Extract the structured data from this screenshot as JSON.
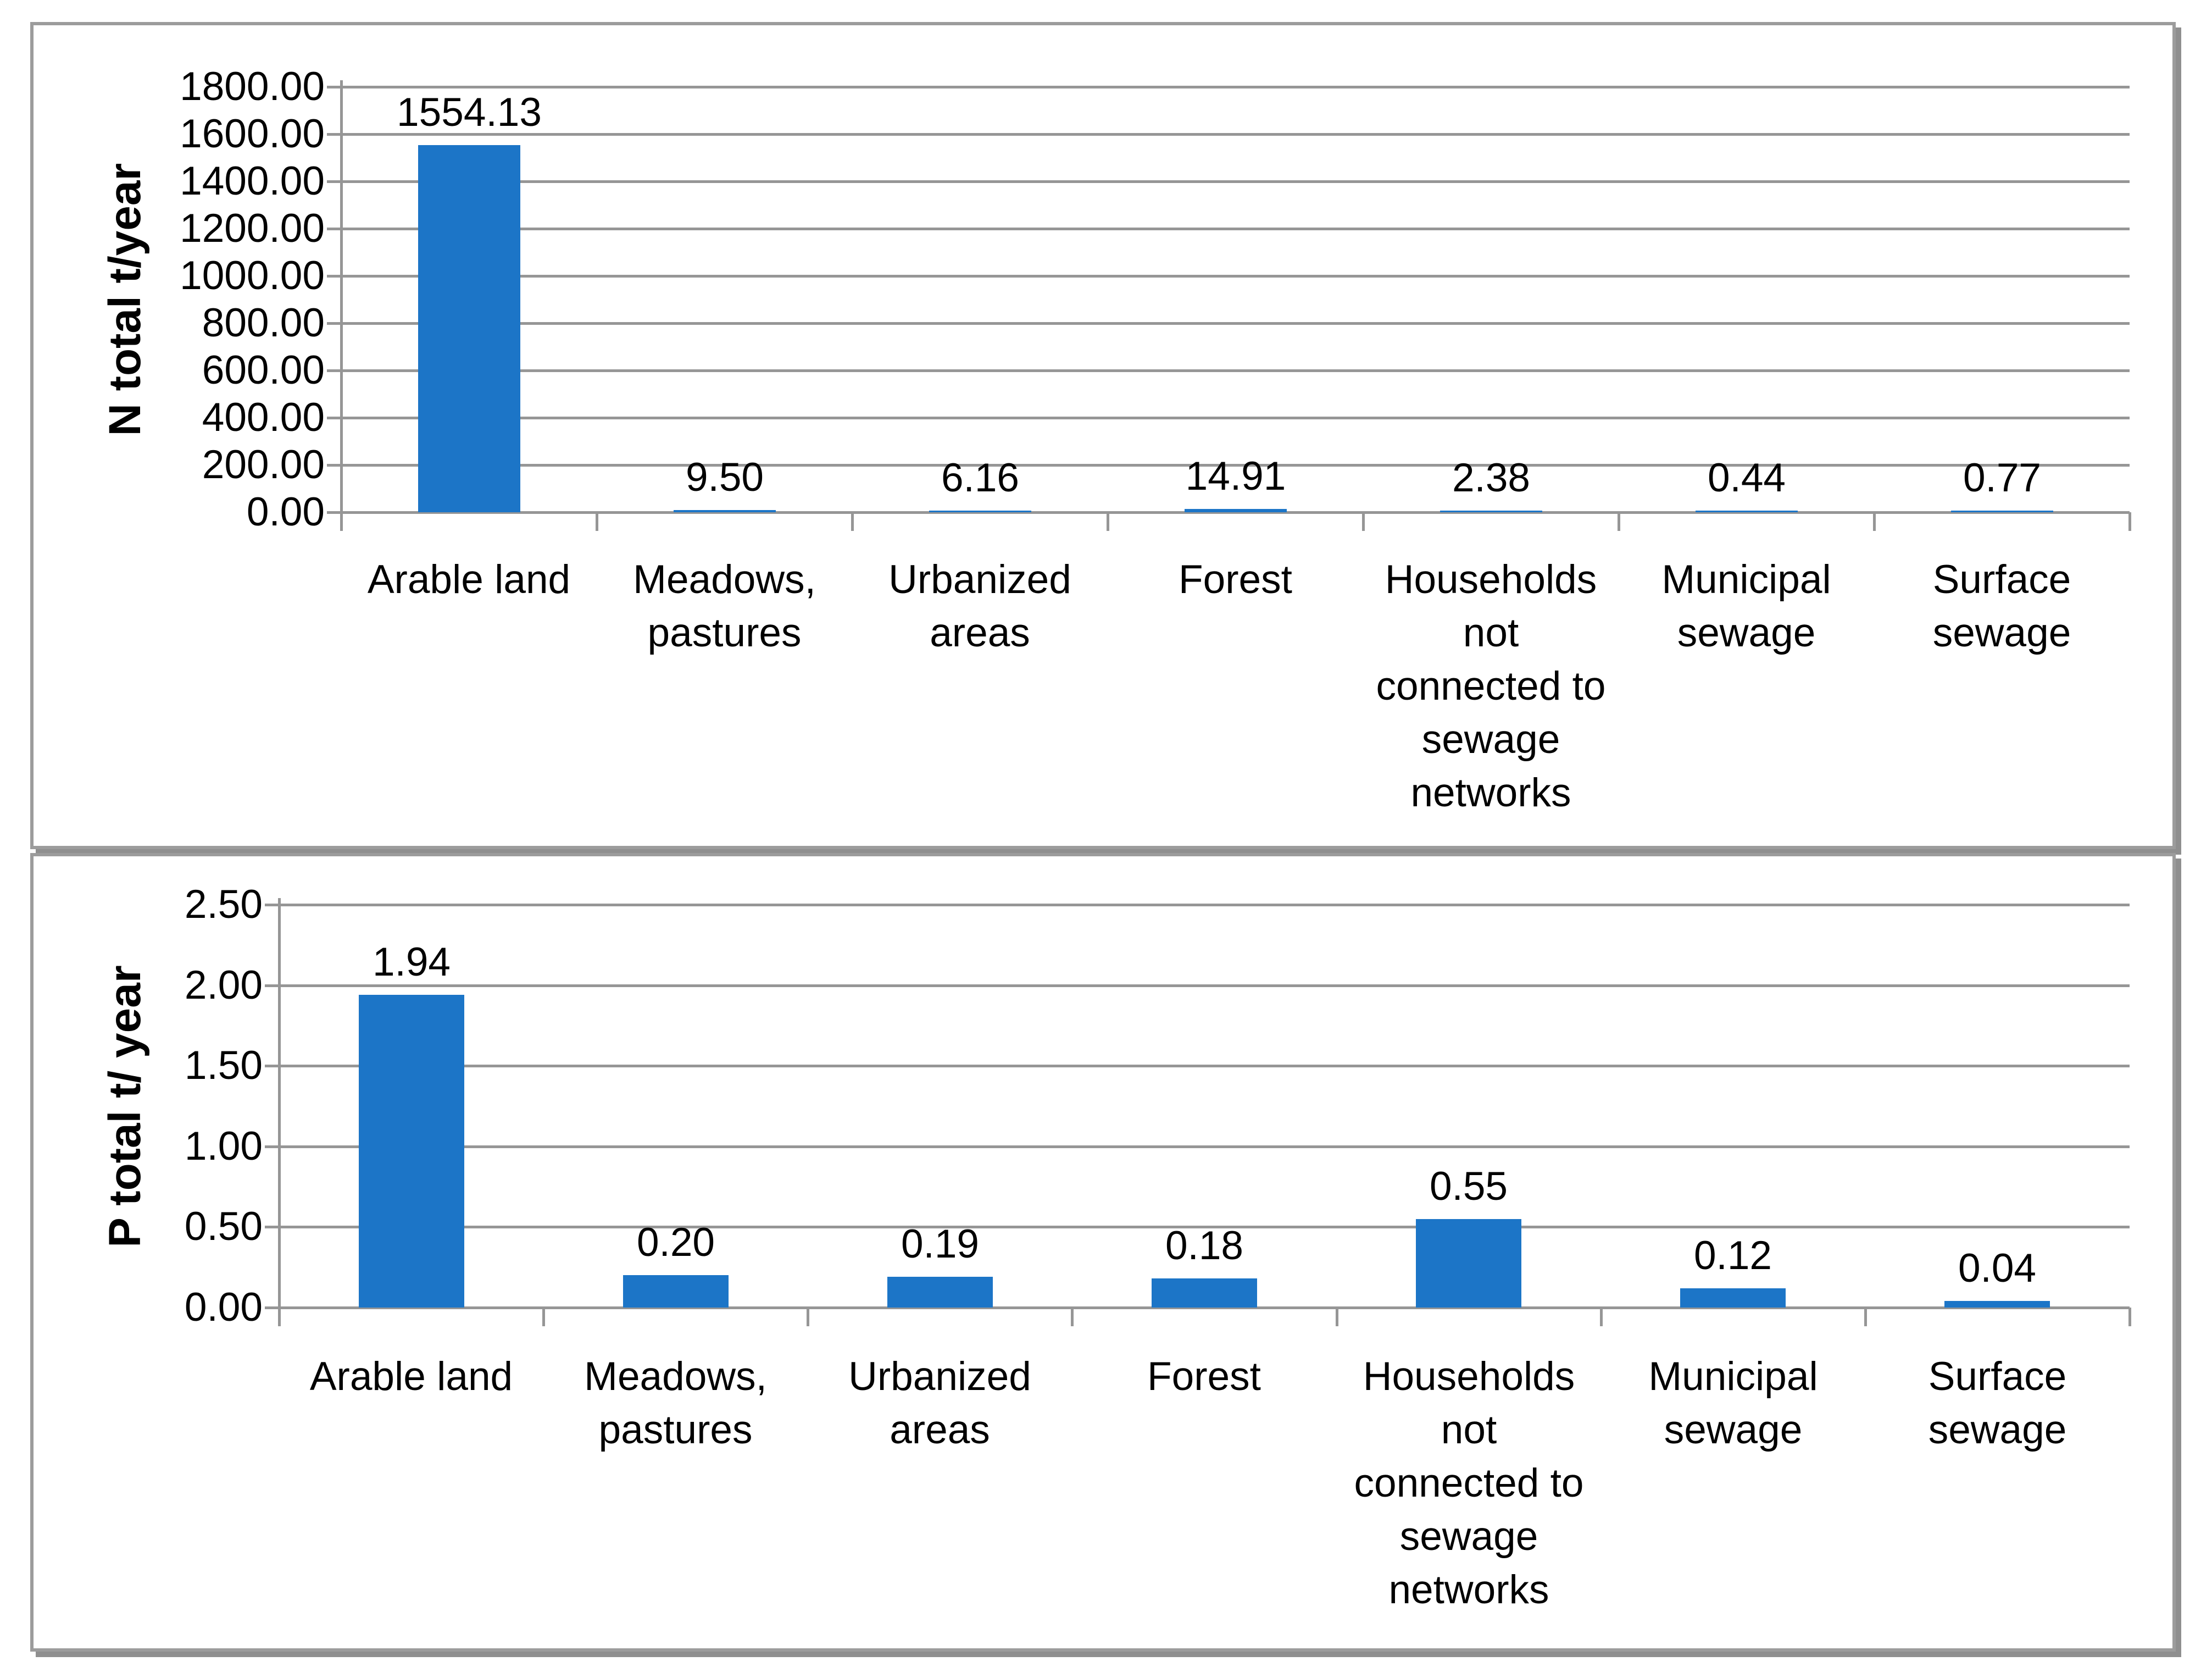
{
  "colors": {
    "bar": "#1c75c7",
    "gridline": "#969696",
    "axis_line": "#969696",
    "panel_border": "#9c9c9c",
    "panel_shadow": "#8f8f8f",
    "text": "#000000",
    "background": "#ffffff"
  },
  "chart_data": [
    {
      "type": "bar",
      "title": "",
      "xlabel": "",
      "ylabel": "N total t/year",
      "categories": [
        "Arable land",
        "Meadows, pastures",
        "Urbanized areas",
        "Forest",
        "Households not connected to sewage networks",
        "Municipal sewage",
        "Surface sewage"
      ],
      "category_lines": [
        [
          "Arable land"
        ],
        [
          "Meadows,",
          "pastures"
        ],
        [
          "Urbanized",
          "areas"
        ],
        [
          "Forest"
        ],
        [
          "Households",
          "not",
          "connected to",
          "sewage",
          "networks"
        ],
        [
          "Municipal",
          "sewage"
        ],
        [
          "Surface",
          "sewage"
        ]
      ],
      "values": [
        1554.13,
        9.5,
        6.16,
        14.91,
        2.38,
        0.44,
        0.77
      ],
      "value_labels": [
        "1554.13",
        "9.50",
        "6.16",
        "14.91",
        "2.38",
        "0.44",
        "0.77"
      ],
      "y_ticks": [
        "1800.00",
        "1600.00",
        "1400.00",
        "1200.00",
        "1000.00",
        "800.00",
        "600.00",
        "400.00",
        "200.00",
        "0.00"
      ],
      "ylim": [
        0,
        1800
      ],
      "tick_step": 200,
      "grid": true,
      "legend_position": "none"
    },
    {
      "type": "bar",
      "title": "",
      "xlabel": "",
      "ylabel": "P total t/ year",
      "categories": [
        "Arable land",
        "Meadows, pastures",
        "Urbanized areas",
        "Forest",
        "Households not connected to sewage networks",
        "Municipal sewage",
        "Surface sewage"
      ],
      "category_lines": [
        [
          "Arable land"
        ],
        [
          "Meadows,",
          "pastures"
        ],
        [
          "Urbanized",
          "areas"
        ],
        [
          "Forest"
        ],
        [
          "Households",
          "not",
          "connected to",
          "sewage",
          "networks"
        ],
        [
          "Municipal",
          "sewage"
        ],
        [
          "Surface",
          "sewage"
        ]
      ],
      "values": [
        1.94,
        0.2,
        0.19,
        0.18,
        0.55,
        0.12,
        0.04
      ],
      "value_labels": [
        "1.94",
        "0.20",
        "0.19",
        "0.18",
        "0.55",
        "0.12",
        "0.04"
      ],
      "y_ticks": [
        "2.50",
        "2.00",
        "1.50",
        "1.00",
        "0.50",
        "0.00"
      ],
      "ylim": [
        0,
        2.5
      ],
      "tick_step": 0.5,
      "grid": true,
      "legend_position": "none"
    }
  ]
}
